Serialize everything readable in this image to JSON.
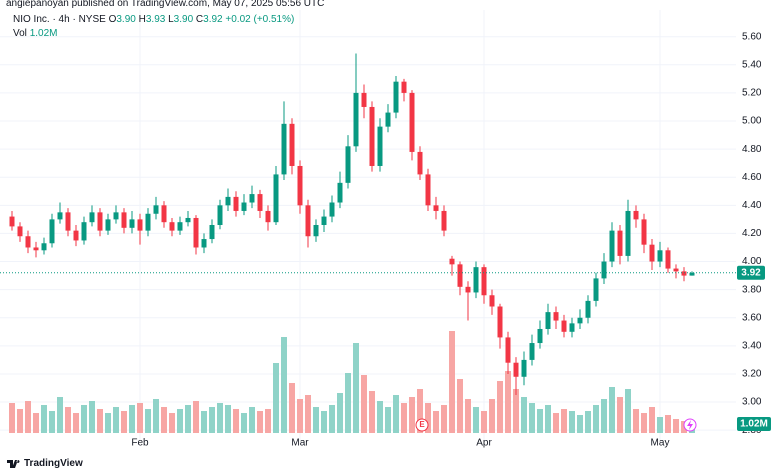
{
  "header": {
    "publisher": "angiepanoyan published on TradingView.com, May 07, 2025 05:56 UTC"
  },
  "chart_data": {
    "type": "candlestick",
    "legend": {
      "symbol": "NIO Inc. · 4h · NYSE",
      "o_label": "O",
      "o_value": "3.90",
      "h_label": "H",
      "h_value": "3.93",
      "l_label": "L",
      "l_value": "3.90",
      "c_label": "C",
      "c_value": "3.92",
      "change": "+0.02 (+0.51%)",
      "vol_label": "Vol",
      "vol_value": "1.02M"
    },
    "price_badge": "3.92",
    "volume_badge": "1.02M",
    "earnings_marker": "E",
    "categories": [
      null,
      null,
      null,
      null,
      null,
      null,
      null,
      null,
      null,
      null,
      null,
      null,
      null,
      null,
      null,
      null,
      "Feb",
      null,
      null,
      null,
      null,
      null,
      null,
      null,
      null,
      null,
      null,
      null,
      null,
      null,
      null,
      null,
      null,
      null,
      null,
      null,
      "Mar",
      null,
      null,
      null,
      null,
      null,
      null,
      null,
      null,
      null,
      null,
      null,
      null,
      null,
      null,
      null,
      null,
      null,
      null,
      null,
      null,
      null,
      null,
      "Apr",
      null,
      null,
      null,
      null,
      null,
      null,
      null,
      null,
      null,
      null,
      null,
      null,
      null,
      null,
      null,
      null,
      null,
      null,
      null,
      null,
      null,
      "May",
      null,
      null,
      null,
      null
    ],
    "open": [
      4.32,
      4.25,
      4.18,
      4.1,
      4.08,
      4.13,
      4.3,
      4.35,
      4.22,
      4.15,
      4.28,
      4.35,
      4.22,
      4.3,
      4.35,
      4.24,
      4.3,
      4.22,
      4.34,
      4.4,
      4.28,
      4.22,
      4.28,
      4.31,
      4.1,
      4.16,
      4.26,
      4.4,
      4.46,
      4.36,
      4.42,
      4.48,
      4.36,
      4.28,
      4.62,
      4.98,
      4.68,
      4.4,
      4.18,
      4.26,
      4.32,
      4.42,
      4.56,
      4.82,
      5.2,
      5.1,
      4.68,
      4.96,
      5.06,
      5.28,
      5.2,
      4.78,
      4.62,
      4.4,
      4.36,
      4.02,
      3.98,
      3.82,
      3.78,
      3.96,
      3.76,
      3.68,
      3.46,
      3.28,
      3.18,
      3.3,
      3.42,
      3.52,
      3.64,
      3.58,
      3.5,
      3.56,
      3.6,
      3.72,
      3.88,
      4.0,
      4.22,
      4.04,
      4.36,
      4.3,
      4.12,
      4.0,
      4.08,
      3.95,
      3.93,
      3.9
    ],
    "high": [
      4.36,
      4.28,
      4.22,
      4.14,
      4.17,
      4.34,
      4.42,
      4.38,
      4.26,
      4.32,
      4.4,
      4.38,
      4.34,
      4.4,
      4.38,
      4.36,
      4.34,
      4.38,
      4.46,
      4.43,
      4.31,
      4.32,
      4.36,
      4.33,
      4.2,
      4.3,
      4.44,
      4.52,
      4.5,
      4.48,
      4.54,
      4.51,
      4.4,
      4.68,
      5.14,
      5.02,
      4.72,
      4.44,
      4.3,
      4.37,
      4.47,
      4.64,
      4.9,
      5.48,
      5.26,
      5.14,
      5.02,
      5.12,
      5.32,
      5.3,
      5.22,
      4.82,
      4.66,
      4.46,
      4.4,
      4.04,
      4.0,
      3.86,
      4.0,
      3.98,
      3.8,
      3.7,
      3.5,
      3.32,
      3.36,
      3.48,
      3.58,
      3.7,
      3.68,
      3.62,
      3.6,
      3.66,
      3.76,
      3.92,
      4.06,
      4.28,
      4.26,
      4.44,
      4.4,
      4.34,
      4.16,
      4.14,
      4.1,
      3.98,
      3.96,
      3.93
    ],
    "low": [
      4.22,
      4.14,
      4.06,
      4.03,
      4.05,
      4.1,
      4.27,
      4.18,
      4.11,
      4.12,
      4.25,
      4.18,
      4.19,
      4.27,
      4.2,
      4.2,
      4.12,
      4.18,
      4.3,
      4.24,
      4.18,
      4.19,
      4.25,
      4.05,
      4.06,
      4.13,
      4.23,
      4.36,
      4.32,
      4.33,
      4.38,
      4.31,
      4.22,
      4.26,
      4.58,
      4.62,
      4.34,
      4.1,
      4.14,
      4.21,
      4.28,
      4.38,
      4.52,
      4.78,
      5.02,
      4.64,
      4.64,
      4.92,
      5.02,
      5.14,
      4.72,
      4.58,
      4.36,
      4.3,
      4.18,
      3.9,
      3.76,
      3.58,
      3.74,
      3.7,
      3.62,
      3.38,
      3.2,
      3.05,
      3.12,
      3.26,
      3.38,
      3.48,
      3.52,
      3.46,
      3.46,
      3.52,
      3.56,
      3.68,
      3.84,
      3.96,
      3.98,
      4.0,
      4.24,
      4.06,
      3.94,
      3.96,
      3.92,
      3.88,
      3.86,
      3.9
    ],
    "close": [
      4.25,
      4.18,
      4.1,
      4.08,
      4.13,
      4.3,
      4.35,
      4.22,
      4.15,
      4.28,
      4.35,
      4.22,
      4.3,
      4.35,
      4.24,
      4.3,
      4.22,
      4.34,
      4.4,
      4.28,
      4.22,
      4.28,
      4.31,
      4.1,
      4.16,
      4.26,
      4.4,
      4.46,
      4.36,
      4.42,
      4.48,
      4.36,
      4.28,
      4.62,
      4.98,
      4.68,
      4.4,
      4.18,
      4.26,
      4.32,
      4.42,
      4.56,
      4.82,
      5.2,
      5.1,
      4.68,
      4.96,
      5.06,
      5.28,
      5.2,
      4.78,
      4.62,
      4.4,
      4.36,
      4.22,
      3.98,
      3.82,
      3.78,
      3.96,
      3.76,
      3.68,
      3.46,
      3.28,
      3.18,
      3.3,
      3.42,
      3.52,
      3.64,
      3.58,
      3.5,
      3.56,
      3.6,
      3.72,
      3.88,
      4.0,
      4.22,
      4.04,
      4.36,
      4.3,
      4.12,
      4.0,
      4.08,
      3.95,
      3.93,
      3.9,
      3.92
    ],
    "volume": [
      3.0,
      2.4,
      3.2,
      2.0,
      2.8,
      2.2,
      3.6,
      2.6,
      2.0,
      2.8,
      3.2,
      2.4,
      2.0,
      2.6,
      2.2,
      2.8,
      3.0,
      2.4,
      3.4,
      2.6,
      2.0,
      2.4,
      2.8,
      3.2,
      2.2,
      2.6,
      3.0,
      2.8,
      2.4,
      2.0,
      2.6,
      2.2,
      2.4,
      7.0,
      9.6,
      5.0,
      3.4,
      3.8,
      2.6,
      2.2,
      2.8,
      4.0,
      6.0,
      9.0,
      5.8,
      4.2,
      3.2,
      2.6,
      3.8,
      3.0,
      3.6,
      4.4,
      3.0,
      2.2,
      2.8,
      10.2,
      5.4,
      3.4,
      2.6,
      2.2,
      3.4,
      5.2,
      6.2,
      4.4,
      3.6,
      3.0,
      2.4,
      2.8,
      2.0,
      2.4,
      2.2,
      1.8,
      2.2,
      2.8,
      3.4,
      4.6,
      3.6,
      4.4,
      2.4,
      2.0,
      2.6,
      1.6,
      1.8,
      1.4,
      1.2,
      1.02
    ],
    "up_color": "#089981",
    "down_color": "#f23645",
    "up_volume_color": "#8fd3c8",
    "down_volume_color": "#f7a6a4",
    "ylim": [
      2.73,
      5.79
    ],
    "yticks": [
      {
        "value": 2.8,
        "label": "2.80"
      },
      {
        "value": 3.0,
        "label": "3.00"
      },
      {
        "value": 3.2,
        "label": "3.20"
      },
      {
        "value": 3.4,
        "label": "3.40"
      },
      {
        "value": 3.6,
        "label": "3.60"
      },
      {
        "value": 3.8,
        "label": "3.80"
      },
      {
        "value": 4.0,
        "label": "4.00"
      },
      {
        "value": 4.2,
        "label": "4.20"
      },
      {
        "value": 4.4,
        "label": "4.40"
      },
      {
        "value": 4.6,
        "label": "4.60"
      },
      {
        "value": 4.8,
        "label": "4.80"
      },
      {
        "value": 5.0,
        "label": "5.00"
      },
      {
        "value": 5.2,
        "label": "5.20"
      },
      {
        "value": 5.4,
        "label": "5.40"
      },
      {
        "value": 5.6,
        "label": "5.60"
      }
    ],
    "volume_lim": [
      0,
      12
    ],
    "grid": true
  },
  "footer": {
    "brand": "TradingView"
  }
}
